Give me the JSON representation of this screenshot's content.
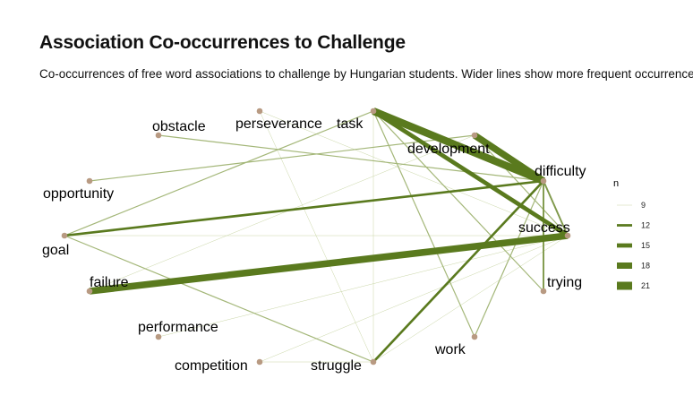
{
  "title": "Association Co-occurrences to Challenge",
  "subtitle": "Co-occurrences of free word associations to challenge by Hungarian students. Wider lines show more frequent occurrences be",
  "colors": {
    "edge": "#5a7a1e",
    "edge_light": "#c9d6a6",
    "node": "#b89a82",
    "text": "#000000"
  },
  "chart_data": {
    "type": "network",
    "title": "Association Co-occurrences to Challenge",
    "nodes": [
      "obstacle",
      "perseverance",
      "task",
      "development",
      "difficulty",
      "opportunity",
      "success",
      "goal",
      "trying",
      "failure",
      "performance",
      "work",
      "competition",
      "struggle"
    ],
    "edges": [
      {
        "from": "task",
        "to": "difficulty",
        "n": 20
      },
      {
        "from": "development",
        "to": "difficulty",
        "n": 19
      },
      {
        "from": "task",
        "to": "success",
        "n": 15
      },
      {
        "from": "failure",
        "to": "success",
        "n": 19
      },
      {
        "from": "goal",
        "to": "difficulty",
        "n": 12
      },
      {
        "from": "struggle",
        "to": "difficulty",
        "n": 12
      },
      {
        "from": "trying",
        "to": "difficulty",
        "n": 11
      },
      {
        "from": "difficulty",
        "to": "success",
        "n": 11
      },
      {
        "from": "obstacle",
        "to": "difficulty",
        "n": 10
      },
      {
        "from": "opportunity",
        "to": "development",
        "n": 10
      },
      {
        "from": "goal",
        "to": "task",
        "n": 10
      },
      {
        "from": "goal",
        "to": "struggle",
        "n": 10
      },
      {
        "from": "task",
        "to": "work",
        "n": 10
      },
      {
        "from": "task",
        "to": "trying",
        "n": 10
      },
      {
        "from": "work",
        "to": "difficulty",
        "n": 10
      },
      {
        "from": "development",
        "to": "success",
        "n": 10
      },
      {
        "from": "failure",
        "to": "development",
        "n": 9
      },
      {
        "from": "goal",
        "to": "success",
        "n": 9
      },
      {
        "from": "perseverance",
        "to": "struggle",
        "n": 9
      },
      {
        "from": "task",
        "to": "struggle",
        "n": 9
      },
      {
        "from": "competition",
        "to": "struggle",
        "n": 9
      },
      {
        "from": "competition",
        "to": "success",
        "n": 9
      },
      {
        "from": "struggle",
        "to": "success",
        "n": 9
      },
      {
        "from": "performance",
        "to": "success",
        "n": 9
      },
      {
        "from": "perseverance",
        "to": "success",
        "n": 9
      }
    ],
    "legend": {
      "title": "n",
      "values": [
        9,
        12,
        15,
        18,
        21
      ],
      "labels": [
        "9",
        "12",
        "15",
        "18",
        "21"
      ]
    }
  }
}
